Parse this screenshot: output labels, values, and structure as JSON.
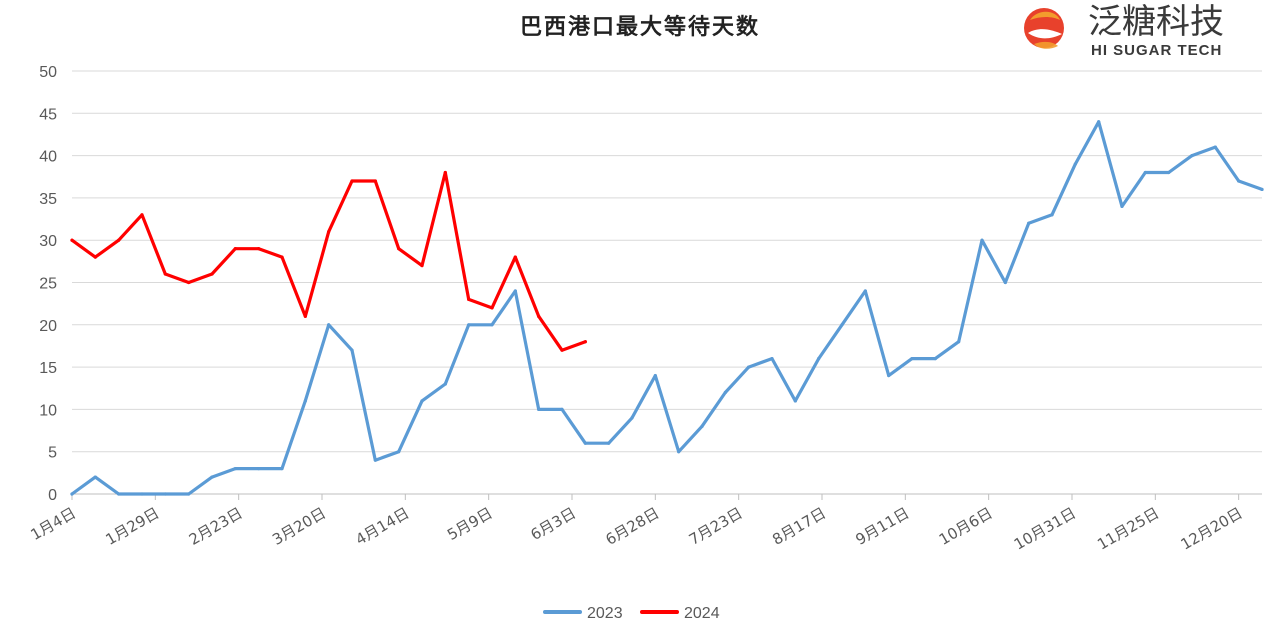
{
  "logo": {
    "name_cn": "泛糖科技",
    "name_en": "HI SUGAR TECH",
    "colors": {
      "primary": "#E8412C",
      "accent": "#F39C2D"
    }
  },
  "chart_data": {
    "type": "line",
    "title": "巴西港口最大等待天数",
    "xlabel": "",
    "ylabel": "",
    "ylim": [
      0,
      50
    ],
    "yticks": [
      0,
      5,
      10,
      15,
      20,
      25,
      30,
      35,
      40,
      45,
      50
    ],
    "x_tick_labels": [
      "1月4日",
      "1月29日",
      "2月23日",
      "3月20日",
      "4月14日",
      "5月9日",
      "6月3日",
      "6月28日",
      "7月23日",
      "8月17日",
      "9月11日",
      "10月6日",
      "10月31日",
      "11月25日",
      "12月20日"
    ],
    "x_tick_interval_weeks": 3.5714,
    "grid": true,
    "legend_position": "bottom",
    "series": [
      {
        "name": "2023",
        "color": "#5B9BD5",
        "values": [
          0,
          2,
          0,
          0,
          0,
          0,
          2,
          3,
          3,
          3,
          11,
          20,
          17,
          4,
          5,
          11,
          13,
          20,
          20,
          24,
          10,
          10,
          6,
          6,
          9,
          14,
          5,
          8,
          12,
          15,
          16,
          11,
          16,
          20,
          24,
          14,
          16,
          16,
          18,
          30,
          25,
          32,
          33,
          39,
          44,
          34,
          38,
          38,
          40,
          41,
          37,
          36
        ]
      },
      {
        "name": "2024",
        "color": "#FF0000",
        "values": [
          30,
          28,
          30,
          33,
          26,
          25,
          26,
          29,
          29,
          28,
          21,
          31,
          37,
          37,
          29,
          27,
          38,
          23,
          22,
          28,
          21,
          17,
          18
        ]
      }
    ]
  }
}
